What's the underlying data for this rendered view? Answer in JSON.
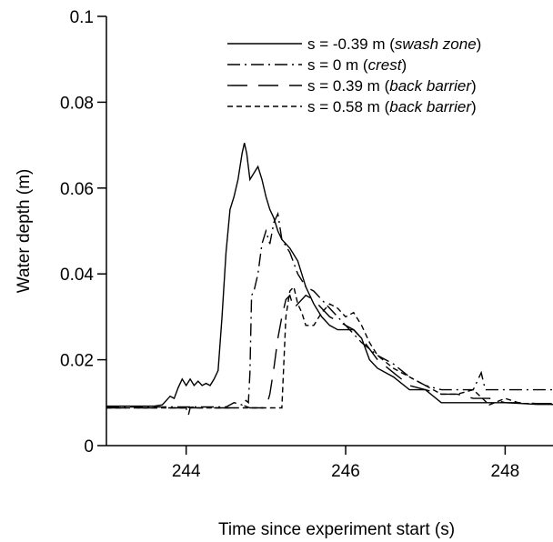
{
  "chart_data": {
    "type": "line",
    "title": "",
    "xlabel": "Time since experiment start (s)",
    "ylabel": "Water depth (m)",
    "xlim": [
      243,
      248.6
    ],
    "ylim": [
      0,
      0.1
    ],
    "xticks": [
      244,
      246,
      248
    ],
    "xtick_labels": [
      "244",
      "246",
      "248"
    ],
    "yticks": [
      0,
      0.02,
      0.04,
      0.06,
      0.08,
      0.1
    ],
    "ytick_labels": [
      "0",
      "0.02",
      "0.04",
      "0.06",
      "0.08",
      "0.1"
    ],
    "grid": false,
    "legend_position": "top-right",
    "series": [
      {
        "name": "s = -0.39 m",
        "name_suffix": "swash zone",
        "dash": "solid",
        "x": [
          243.0,
          243.6,
          243.7,
          243.8,
          243.85,
          243.9,
          243.95,
          244.0,
          244.05,
          244.1,
          244.15,
          244.2,
          244.25,
          244.3,
          244.35,
          244.4,
          244.45,
          244.5,
          244.55,
          244.6,
          244.65,
          244.7,
          244.73,
          244.76,
          244.8,
          244.85,
          244.9,
          244.95,
          245.0,
          245.05,
          245.1,
          245.15,
          245.2,
          245.3,
          245.4,
          245.5,
          245.6,
          245.7,
          245.8,
          245.9,
          246.0,
          246.1,
          246.2,
          246.3,
          246.4,
          246.6,
          246.8,
          247.0,
          247.2,
          247.4,
          247.6,
          247.8,
          248.0,
          248.2,
          248.4,
          248.6
        ],
        "y": [
          0.0092,
          0.0092,
          0.0095,
          0.0115,
          0.011,
          0.0135,
          0.0155,
          0.014,
          0.0155,
          0.014,
          0.015,
          0.014,
          0.0145,
          0.014,
          0.0155,
          0.0175,
          0.03,
          0.045,
          0.055,
          0.058,
          0.062,
          0.068,
          0.0705,
          0.068,
          0.062,
          0.0635,
          0.065,
          0.062,
          0.058,
          0.055,
          0.053,
          0.05,
          0.048,
          0.046,
          0.043,
          0.037,
          0.033,
          0.03,
          0.028,
          0.027,
          0.027,
          0.027,
          0.025,
          0.02,
          0.018,
          0.016,
          0.013,
          0.013,
          0.01,
          0.01,
          0.01,
          0.01,
          0.01,
          0.0098,
          0.0096,
          0.0096
        ]
      },
      {
        "name": "s = 0 m",
        "name_suffix": "crest",
        "dash": "dashdot",
        "x": [
          243.0,
          243.9,
          244.0,
          244.5,
          244.6,
          244.7,
          244.75,
          244.78,
          244.8,
          244.82,
          244.85,
          244.9,
          244.95,
          245.0,
          245.05,
          245.1,
          245.15,
          245.2,
          245.3,
          245.4,
          245.5,
          245.6,
          245.7,
          245.8,
          246.0,
          246.2,
          246.4,
          246.6,
          246.8,
          247.0,
          247.2,
          247.4,
          247.6,
          247.7,
          247.75,
          247.8,
          248.0,
          248.2,
          248.4,
          248.6
        ],
        "y": [
          0.009,
          0.009,
          0.009,
          0.009,
          0.01,
          0.0095,
          0.0105,
          0.01,
          0.017,
          0.035,
          0.036,
          0.04,
          0.047,
          0.05,
          0.047,
          0.052,
          0.054,
          0.048,
          0.045,
          0.04,
          0.037,
          0.036,
          0.034,
          0.032,
          0.028,
          0.024,
          0.021,
          0.019,
          0.016,
          0.014,
          0.013,
          0.013,
          0.013,
          0.017,
          0.013,
          0.013,
          0.013,
          0.013,
          0.013,
          0.013
        ]
      },
      {
        "name": "s = 0.39 m",
        "name_suffix": "back barrier",
        "dash": "longdash",
        "x": [
          243.0,
          244.0,
          244.02,
          244.05,
          244.3,
          244.4,
          244.5,
          244.6,
          244.7,
          244.8,
          244.9,
          245.0,
          245.05,
          245.1,
          245.15,
          245.2,
          245.25,
          245.3,
          245.35,
          245.4,
          245.5,
          245.6,
          245.7,
          245.8,
          245.9,
          246.0,
          246.1,
          246.2,
          246.4,
          246.6,
          246.8,
          247.0,
          247.2,
          247.4,
          247.6,
          247.8,
          248.0,
          248.2,
          248.4,
          248.6
        ],
        "y": [
          0.0088,
          0.0088,
          0.0065,
          0.0088,
          0.0088,
          0.0088,
          0.0088,
          0.0088,
          0.0095,
          0.0088,
          0.0088,
          0.0088,
          0.012,
          0.018,
          0.025,
          0.03,
          0.034,
          0.035,
          0.032,
          0.033,
          0.035,
          0.034,
          0.032,
          0.03,
          0.029,
          0.028,
          0.027,
          0.025,
          0.02,
          0.017,
          0.014,
          0.013,
          0.012,
          0.012,
          0.011,
          0.011,
          0.01,
          0.01,
          0.0098,
          0.0098
        ]
      },
      {
        "name": "s = 0.58 m",
        "name_suffix": "back barrier",
        "dash": "shortdash",
        "x": [
          243.0,
          244.0,
          244.1,
          244.15,
          244.2,
          244.3,
          244.35,
          244.5,
          244.55,
          244.6,
          244.65,
          244.8,
          244.9,
          245.0,
          245.1,
          245.12,
          245.15,
          245.2,
          245.25,
          245.3,
          245.35,
          245.4,
          245.45,
          245.5,
          245.6,
          245.7,
          245.8,
          245.9,
          246.0,
          246.1,
          246.2,
          246.3,
          246.4,
          246.6,
          246.8,
          247.0,
          247.2,
          247.4,
          247.6,
          247.8,
          248.0,
          248.2,
          248.4,
          248.6
        ],
        "y": [
          0.0088,
          0.0088,
          0.009,
          0.0088,
          0.0088,
          0.0088,
          0.0088,
          0.0088,
          0.0088,
          0.0088,
          0.0088,
          0.0088,
          0.0088,
          0.0088,
          0.0088,
          0.0088,
          0.0088,
          0.0088,
          0.03,
          0.036,
          0.037,
          0.033,
          0.031,
          0.028,
          0.028,
          0.031,
          0.033,
          0.032,
          0.03,
          0.031,
          0.028,
          0.024,
          0.021,
          0.018,
          0.016,
          0.014,
          0.012,
          0.012,
          0.013,
          0.0095,
          0.011,
          0.0098,
          0.0098,
          0.0096
        ]
      }
    ]
  }
}
